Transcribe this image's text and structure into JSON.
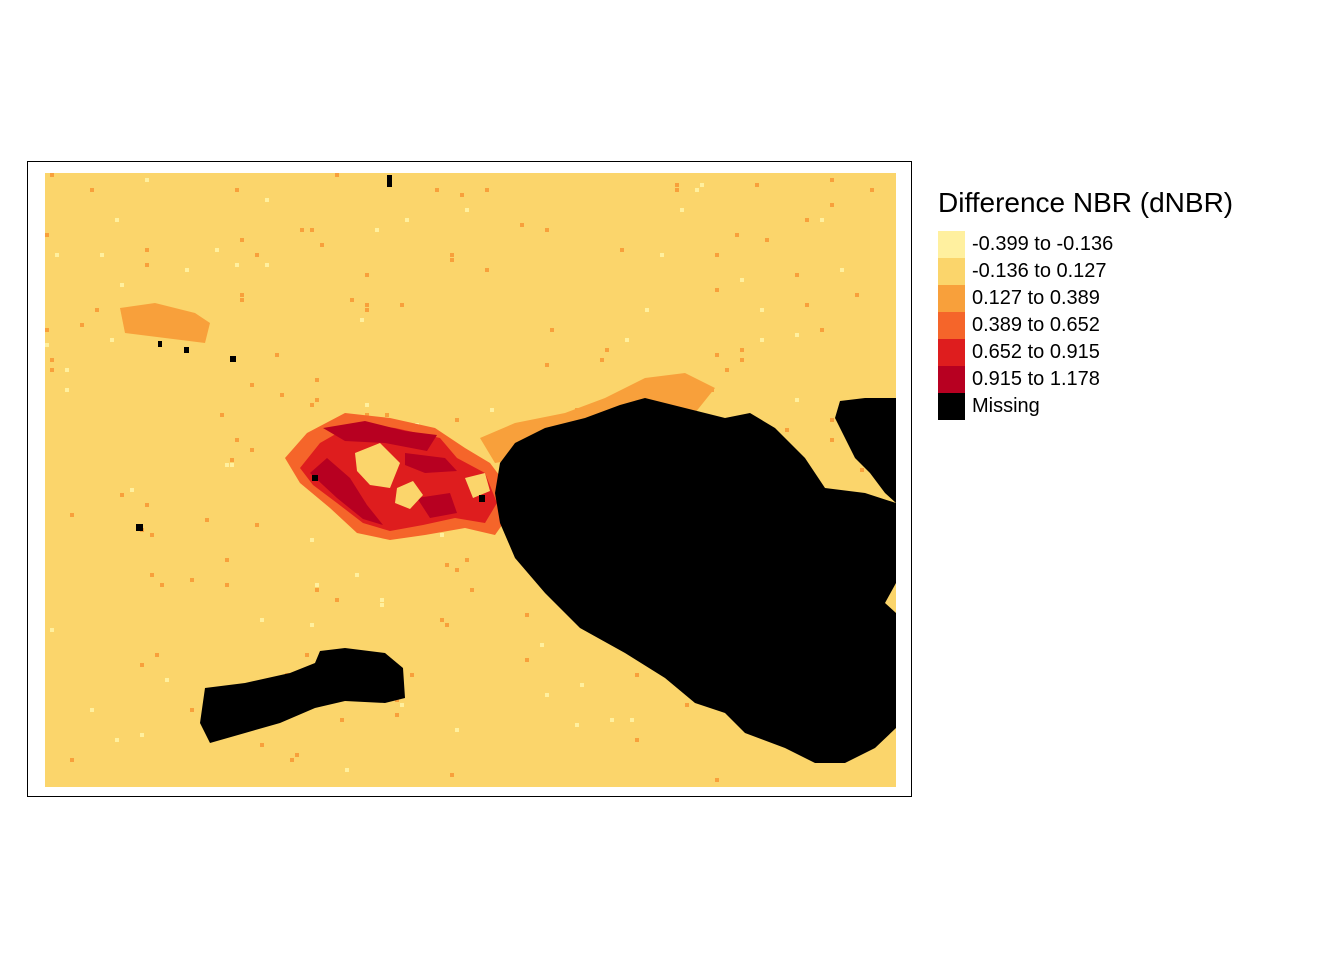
{
  "legend": {
    "title": "Difference NBR (dNBR)",
    "classes": [
      {
        "label": "-0.399 to -0.136",
        "color": "#fff09f"
      },
      {
        "label": "-0.136 to 0.127",
        "color": "#fbd56b"
      },
      {
        "label": "0.127 to 0.389",
        "color": "#f8a03b"
      },
      {
        "label": "0.389 to 0.652",
        "color": "#f5652a"
      },
      {
        "label": "0.652 to 0.915",
        "color": "#de1d1e"
      },
      {
        "label": "0.915 to 1.178",
        "color": "#b70021"
      },
      {
        "label": "Missing",
        "color": "#000000"
      }
    ]
  }
}
